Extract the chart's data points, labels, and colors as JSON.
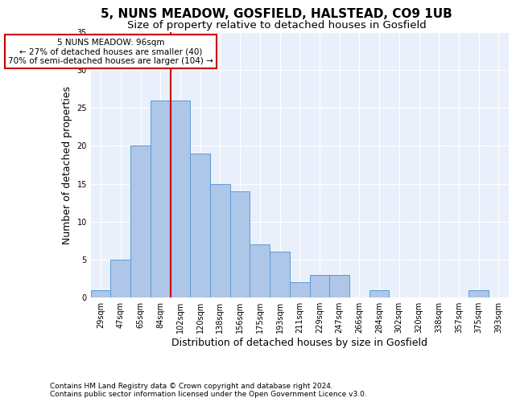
{
  "title": "5, NUNS MEADOW, GOSFIELD, HALSTEAD, CO9 1UB",
  "subtitle": "Size of property relative to detached houses in Gosfield",
  "xlabel": "Distribution of detached houses by size in Gosfield",
  "ylabel": "Number of detached properties",
  "categories": [
    "29sqm",
    "47sqm",
    "65sqm",
    "84sqm",
    "102sqm",
    "120sqm",
    "138sqm",
    "156sqm",
    "175sqm",
    "193sqm",
    "211sqm",
    "229sqm",
    "247sqm",
    "266sqm",
    "284sqm",
    "302sqm",
    "320sqm",
    "338sqm",
    "357sqm",
    "375sqm",
    "393sqm"
  ],
  "values": [
    1,
    5,
    20,
    26,
    26,
    19,
    15,
    14,
    7,
    6,
    2,
    3,
    3,
    0,
    1,
    0,
    0,
    0,
    0,
    1,
    0
  ],
  "bar_color": "#aec6e8",
  "bar_edgecolor": "#5b9bd5",
  "vline_color": "#cc0000",
  "annotation_text": "5 NUNS MEADOW: 96sqm\n← 27% of detached houses are smaller (40)\n70% of semi-detached houses are larger (104) →",
  "annotation_box_edgecolor": "#cc0000",
  "annotation_box_facecolor": "#ffffff",
  "ylim": [
    0,
    35
  ],
  "yticks": [
    0,
    5,
    10,
    15,
    20,
    25,
    30,
    35
  ],
  "footer_line1": "Contains HM Land Registry data © Crown copyright and database right 2024.",
  "footer_line2": "Contains public sector information licensed under the Open Government Licence v3.0.",
  "background_color": "#eaf0fb",
  "grid_color": "#ffffff",
  "title_fontsize": 11,
  "subtitle_fontsize": 9.5,
  "axis_label_fontsize": 9,
  "tick_fontsize": 7,
  "annotation_fontsize": 7.5,
  "footer_fontsize": 6.5
}
